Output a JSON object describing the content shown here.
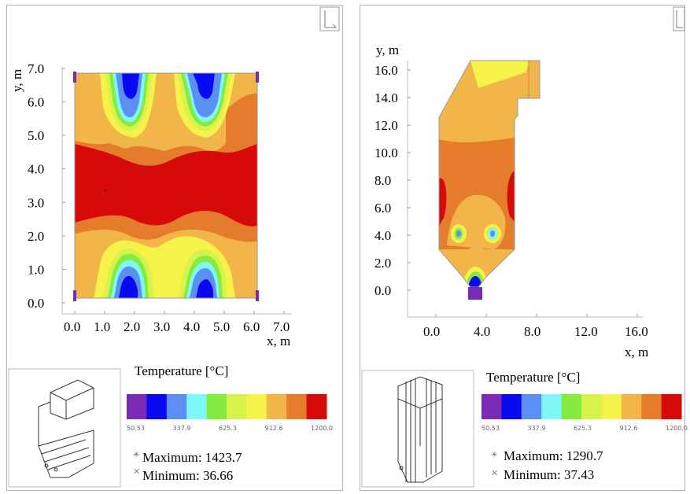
{
  "palette": [
    "#7a2ab5",
    "#0a0af2",
    "#5b8ff3",
    "#7ff7f7",
    "#84ec41",
    "#d7f24a",
    "#f5f34a",
    "#f2b54a",
    "#e57c2b",
    "#d70a0a"
  ],
  "chart_data": [
    {
      "type": "heatmap",
      "xlabel": "x, m",
      "ylabel": "y, m",
      "x_ticks": [
        "0.0",
        "1.0",
        "2.0",
        "3.0",
        "4.0",
        "5.0",
        "6.0",
        "7.0"
      ],
      "y_ticks": [
        "0.0",
        "1.0",
        "2.0",
        "3.0",
        "4.0",
        "5.0",
        "6.0",
        "7.0"
      ],
      "xlim": [
        0,
        7
      ],
      "ylim": [
        0,
        7
      ],
      "legend_title": "Temperature [°C]",
      "colorbar_labels": [
        "50.53",
        "337.9",
        "625.3",
        "912.6",
        "1200.0"
      ],
      "maximum": "Maximum: 1423.7",
      "minimum": "Minimum:  36.66"
    },
    {
      "type": "heatmap",
      "xlabel": "x, m",
      "ylabel": "y, m",
      "x_ticks": [
        "0.0",
        "4.0",
        "8.0",
        "12.0",
        "16.0"
      ],
      "y_ticks": [
        "0.0",
        "2.0",
        "4.0",
        "6.0",
        "8.0",
        "10.0",
        "12.0",
        "14.0",
        "16.0"
      ],
      "xlim": [
        -2,
        16
      ],
      "ylim": [
        -1,
        16.5
      ],
      "legend_title": "Temperature [°C]",
      "colorbar_labels": [
        "50.53",
        "337.9",
        "625.3",
        "912.6",
        "1200.0"
      ],
      "maximum": "Maximum: 1290.7",
      "minimum": "Minimum:  37.43"
    }
  ]
}
